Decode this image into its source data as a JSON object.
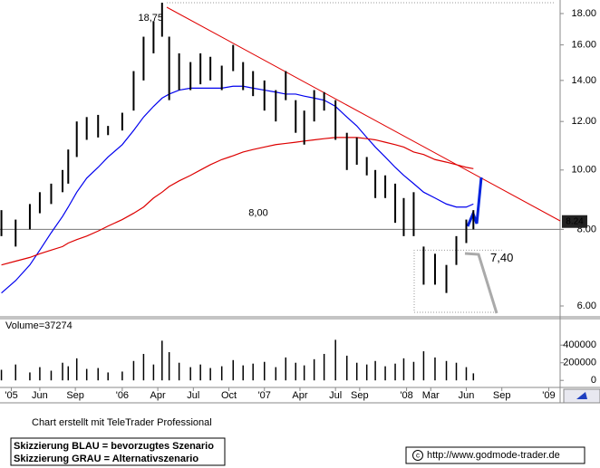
{
  "chart_data": {
    "type": "ohlc",
    "log_scale": true,
    "x": [
      2005.15,
      2005.25,
      2005.35,
      2005.42,
      2005.5,
      2005.58,
      2005.62,
      2005.68,
      2005.75,
      2005.83,
      2005.9,
      2006.0,
      2006.08,
      2006.15,
      2006.22,
      2006.28,
      2006.33,
      2006.4,
      2006.48,
      2006.55,
      2006.62,
      2006.7,
      2006.78,
      2006.85,
      2006.92,
      2007.0,
      2007.08,
      2007.15,
      2007.22,
      2007.28,
      2007.35,
      2007.42,
      2007.5,
      2007.58,
      2007.65,
      2007.72,
      2007.78,
      2007.85,
      2007.92,
      2007.98,
      2008.05,
      2008.12,
      2008.2,
      2008.28,
      2008.35,
      2008.42,
      2008.47
    ],
    "high": [
      8.6,
      8.3,
      8.8,
      9.2,
      9.5,
      10.0,
      10.8,
      12.0,
      12.2,
      12.3,
      11.8,
      12.4,
      14.5,
      16.5,
      17.5,
      18.75,
      16.5,
      15.5,
      15.0,
      15.5,
      15.3,
      14.8,
      16.0,
      15.0,
      14.5,
      14.0,
      13.5,
      14.5,
      13.0,
      12.5,
      13.5,
      13.4,
      13.0,
      11.5,
      11.3,
      10.5,
      10.0,
      9.8,
      9.5,
      9.0,
      9.2,
      7.5,
      7.3,
      7.0,
      7.8,
      8.3,
      8.6
    ],
    "low": [
      7.8,
      7.5,
      8.0,
      8.5,
      8.8,
      9.2,
      9.5,
      10.5,
      11.2,
      11.3,
      11.4,
      11.6,
      12.5,
      14.0,
      15.5,
      16.5,
      13.0,
      13.5,
      13.5,
      13.8,
      14.0,
      13.5,
      14.5,
      13.5,
      13.2,
      12.5,
      12.0,
      13.0,
      11.5,
      11.0,
      12.0,
      12.5,
      11.2,
      10.0,
      10.2,
      9.8,
      9.0,
      9.0,
      8.2,
      7.8,
      7.8,
      6.5,
      6.5,
      6.3,
      7.0,
      7.6,
      8.0
    ],
    "bar_color": "#000000",
    "moving_averages": [
      {
        "color": "#0000ee",
        "values": [
          6.3,
          6.6,
          7.0,
          7.4,
          7.9,
          8.4,
          8.7,
          9.2,
          9.7,
          10.1,
          10.5,
          11.0,
          11.6,
          12.2,
          12.7,
          13.1,
          13.3,
          13.5,
          13.6,
          13.6,
          13.6,
          13.6,
          13.7,
          13.7,
          13.6,
          13.5,
          13.4,
          13.3,
          13.3,
          13.2,
          13.1,
          13.0,
          12.7,
          12.2,
          11.8,
          11.3,
          10.9,
          10.5,
          10.1,
          9.8,
          9.5,
          9.2,
          9.0,
          8.8,
          8.7,
          8.7,
          8.8
        ]
      },
      {
        "color": "#dd0000",
        "values": [
          7.0,
          7.1,
          7.2,
          7.3,
          7.4,
          7.5,
          7.6,
          7.7,
          7.8,
          7.95,
          8.1,
          8.3,
          8.5,
          8.7,
          9.0,
          9.2,
          9.4,
          9.6,
          9.8,
          10.0,
          10.2,
          10.4,
          10.55,
          10.7,
          10.8,
          10.9,
          11.0,
          11.05,
          11.1,
          11.15,
          11.2,
          11.25,
          11.3,
          11.3,
          11.3,
          11.25,
          11.2,
          11.1,
          11.0,
          10.9,
          10.7,
          10.6,
          10.4,
          10.3,
          10.2,
          10.1,
          10.05
        ]
      }
    ],
    "xlim": [
      2005.14,
      2009.08
    ],
    "xticks": [
      {
        "value": 2005.22,
        "label": "'05"
      },
      {
        "value": 2005.42,
        "label": "Jun"
      },
      {
        "value": 2005.67,
        "label": "Sep"
      },
      {
        "value": 2006.0,
        "label": "'06"
      },
      {
        "value": 2006.25,
        "label": "Apr"
      },
      {
        "value": 2006.5,
        "label": "Jul"
      },
      {
        "value": 2006.75,
        "label": "Oct"
      },
      {
        "value": 2007.0,
        "label": "'07"
      },
      {
        "value": 2007.25,
        "label": "Apr"
      },
      {
        "value": 2007.5,
        "label": "Jul"
      },
      {
        "value": 2007.67,
        "label": "Sep"
      },
      {
        "value": 2008.0,
        "label": "'08"
      },
      {
        "value": 2008.17,
        "label": "Mar"
      },
      {
        "value": 2008.42,
        "label": "Jun"
      },
      {
        "value": 2008.67,
        "label": "Sep"
      },
      {
        "value": 2009.0,
        "label": "'09"
      }
    ],
    "ylim": [
      5.76,
      18.94
    ],
    "yticks": [
      {
        "value": 6,
        "label": "6.00"
      },
      {
        "value": 8,
        "label": "8.00"
      },
      {
        "value": 10,
        "label": "10.00"
      },
      {
        "value": 12,
        "label": "12.00"
      },
      {
        "value": 14,
        "label": "14.00"
      },
      {
        "value": 16,
        "label": "16.00"
      },
      {
        "value": 18,
        "label": "18.00"
      }
    ],
    "last_price": 8.24,
    "annotations": [
      {
        "value": 18.75,
        "label": "18,75"
      },
      {
        "value": 8.0,
        "label": "8,00"
      },
      {
        "value": 7.4,
        "label": "7,40"
      }
    ],
    "volume": {
      "label": "Volume=37274",
      "color": "#000000",
      "values": [
        120000,
        180000,
        90000,
        150000,
        110000,
        200000,
        160000,
        250000,
        130000,
        140000,
        90000,
        100000,
        220000,
        300000,
        180000,
        450000,
        320000,
        200000,
        150000,
        180000,
        140000,
        160000,
        230000,
        170000,
        190000,
        210000,
        150000,
        260000,
        200000,
        170000,
        240000,
        300000,
        460000,
        280000,
        200000,
        180000,
        220000,
        160000,
        190000,
        250000,
        210000,
        330000,
        260000,
        220000,
        200000,
        150000,
        80000
      ],
      "ylim": [
        -80000,
        700000
      ],
      "yticks": [
        0,
        200000,
        400000
      ]
    }
  },
  "footer": {
    "credit": "Chart erstellt mit TeleTrader Professional",
    "legend_lines": [
      "Skizzierung BLAU = bevorzugtes Szenario",
      "Skizzierung GRAU = Alternativszenario"
    ],
    "url": "http://www.godmode-trader.de"
  }
}
